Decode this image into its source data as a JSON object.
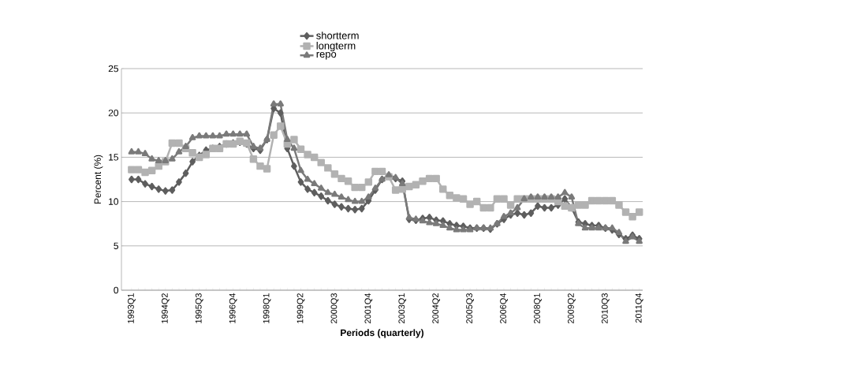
{
  "chart_data": {
    "type": "line",
    "xlabel": "Periods (quarterly)",
    "ylabel": "Percent (%)",
    "categories": [
      "1993Q1",
      null,
      null,
      null,
      null,
      "1994Q2",
      null,
      null,
      null,
      null,
      "1995Q3",
      null,
      null,
      null,
      null,
      "1996Q4",
      null,
      null,
      null,
      null,
      "1998Q1",
      null,
      null,
      null,
      null,
      "1999Q2",
      null,
      null,
      null,
      null,
      "2000Q3",
      null,
      null,
      null,
      null,
      "2001Q4",
      null,
      null,
      null,
      null,
      "2003Q1",
      null,
      null,
      null,
      null,
      "2004Q2",
      null,
      null,
      null,
      null,
      "2005Q3",
      null,
      null,
      null,
      null,
      "2006Q4",
      null,
      null,
      null,
      null,
      "2008Q1",
      null,
      null,
      null,
      null,
      "2009Q2",
      null,
      null,
      null,
      null,
      "2010Q3",
      null,
      null,
      null,
      null,
      "2011Q4"
    ],
    "series": [
      {
        "name": "shortterm",
        "color": "#5e5e5e",
        "marker": "diamond",
        "values": [
          12.5,
          12.5,
          12.0,
          11.7,
          11.4,
          11.2,
          11.3,
          12.2,
          13.2,
          14.5,
          15.2,
          15.8,
          16.0,
          16.2,
          16.5,
          16.6,
          16.7,
          16.5,
          16.0,
          15.8,
          17.0,
          20.5,
          20.0,
          16.0,
          14.0,
          12.2,
          11.4,
          11.0,
          10.6,
          10.1,
          9.7,
          9.4,
          9.2,
          9.1,
          9.2,
          10.1,
          11.3,
          12.5,
          12.9,
          12.6,
          12.3,
          8.0,
          7.9,
          8.1,
          8.2,
          7.9,
          7.8,
          7.5,
          7.3,
          7.2,
          7.0,
          7.0,
          7.0,
          6.9,
          7.5,
          8.0,
          8.5,
          8.7,
          8.5,
          8.7,
          9.5,
          9.3,
          9.3,
          9.6,
          10.3,
          9.3,
          7.7,
          7.5,
          7.3,
          7.3,
          7.0,
          6.8,
          6.3,
          5.8,
          6.2,
          5.8
        ]
      },
      {
        "name": "longterm",
        "color": "#b2b2b2",
        "marker": "square",
        "values": [
          13.6,
          13.6,
          13.3,
          13.5,
          14.0,
          14.5,
          16.6,
          16.6,
          16.0,
          15.5,
          15.0,
          15.3,
          16.0,
          16.0,
          16.5,
          16.5,
          16.8,
          16.6,
          14.8,
          14.0,
          13.7,
          17.5,
          18.5,
          16.5,
          17.0,
          15.9,
          15.3,
          15.0,
          14.4,
          13.8,
          13.1,
          12.6,
          12.3,
          11.6,
          11.6,
          12.2,
          13.4,
          13.4,
          12.8,
          11.3,
          11.4,
          11.7,
          11.9,
          12.3,
          12.6,
          12.6,
          11.4,
          10.7,
          10.4,
          10.3,
          9.7,
          10.0,
          9.3,
          9.3,
          10.3,
          10.3,
          9.6,
          10.3,
          10.3,
          10.3,
          10.3,
          10.3,
          10.3,
          10.0,
          9.5,
          9.3,
          9.6,
          9.6,
          10.1,
          10.1,
          10.1,
          10.1,
          9.6,
          8.8,
          8.3,
          8.8
        ]
      },
      {
        "name": "repo",
        "color": "#7a7a7a",
        "marker": "triangle",
        "values": [
          15.6,
          15.6,
          15.4,
          14.8,
          14.6,
          14.6,
          14.8,
          15.6,
          16.2,
          17.2,
          17.4,
          17.4,
          17.4,
          17.4,
          17.6,
          17.6,
          17.6,
          17.6,
          16.2,
          16.0,
          17.0,
          21.0,
          21.0,
          17.0,
          16.0,
          13.5,
          12.5,
          12.0,
          11.5,
          11.0,
          10.8,
          10.5,
          10.2,
          10.0,
          10.0,
          10.5,
          11.5,
          12.5,
          13.0,
          12.7,
          12.0,
          8.2,
          8.0,
          7.8,
          7.6,
          7.5,
          7.3,
          7.0,
          6.8,
          6.8,
          6.8,
          7.0,
          7.0,
          7.0,
          7.5,
          8.3,
          8.7,
          9.3,
          10.3,
          10.5,
          10.5,
          10.5,
          10.5,
          10.5,
          11.0,
          10.5,
          7.5,
          7.0,
          7.0,
          7.0,
          7.0,
          7.0,
          6.5,
          5.5,
          6.0,
          5.5
        ]
      }
    ],
    "ylim": [
      0,
      25
    ],
    "yticks": [
      0,
      5,
      10,
      15,
      20,
      25
    ],
    "grid": "y",
    "legend": "top",
    "line_style": "solid"
  }
}
